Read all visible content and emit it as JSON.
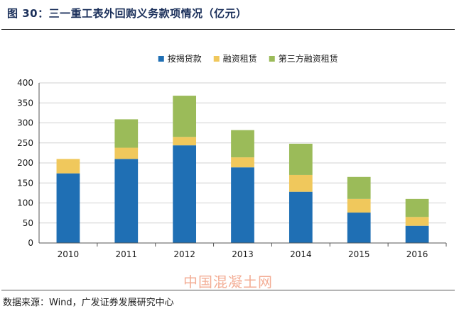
{
  "figure": {
    "title": "图 30：三一重工表外回购义务款项情况（亿元）",
    "source": "数据来源：Wind，广发证券发展研究中心",
    "watermark": "中国混凝土网"
  },
  "colors": {
    "series1": "#1f6fb4",
    "series2": "#f0c85c",
    "series3": "#9bbb59",
    "grid": "#d0d0d0",
    "axis": "#555555"
  },
  "chart_data": {
    "type": "bar",
    "stacked": true,
    "title": "",
    "xlabel": "",
    "ylabel": "",
    "categories": [
      "2010",
      "2011",
      "2012",
      "2013",
      "2014",
      "2015",
      "2016"
    ],
    "series": [
      {
        "name": "按揭贷款",
        "values": [
          174,
          210,
          244,
          189,
          128,
          76,
          43
        ]
      },
      {
        "name": "融资租赁",
        "values": [
          36,
          28,
          21,
          25,
          42,
          34,
          22
        ]
      },
      {
        "name": "第三方融资租赁",
        "values": [
          0,
          71,
          103,
          68,
          78,
          55,
          45
        ]
      }
    ],
    "ylim": [
      0,
      400
    ],
    "yticks": [
      0,
      50,
      100,
      150,
      200,
      250,
      300,
      350,
      400
    ],
    "grid": true,
    "legend": "top-center"
  }
}
